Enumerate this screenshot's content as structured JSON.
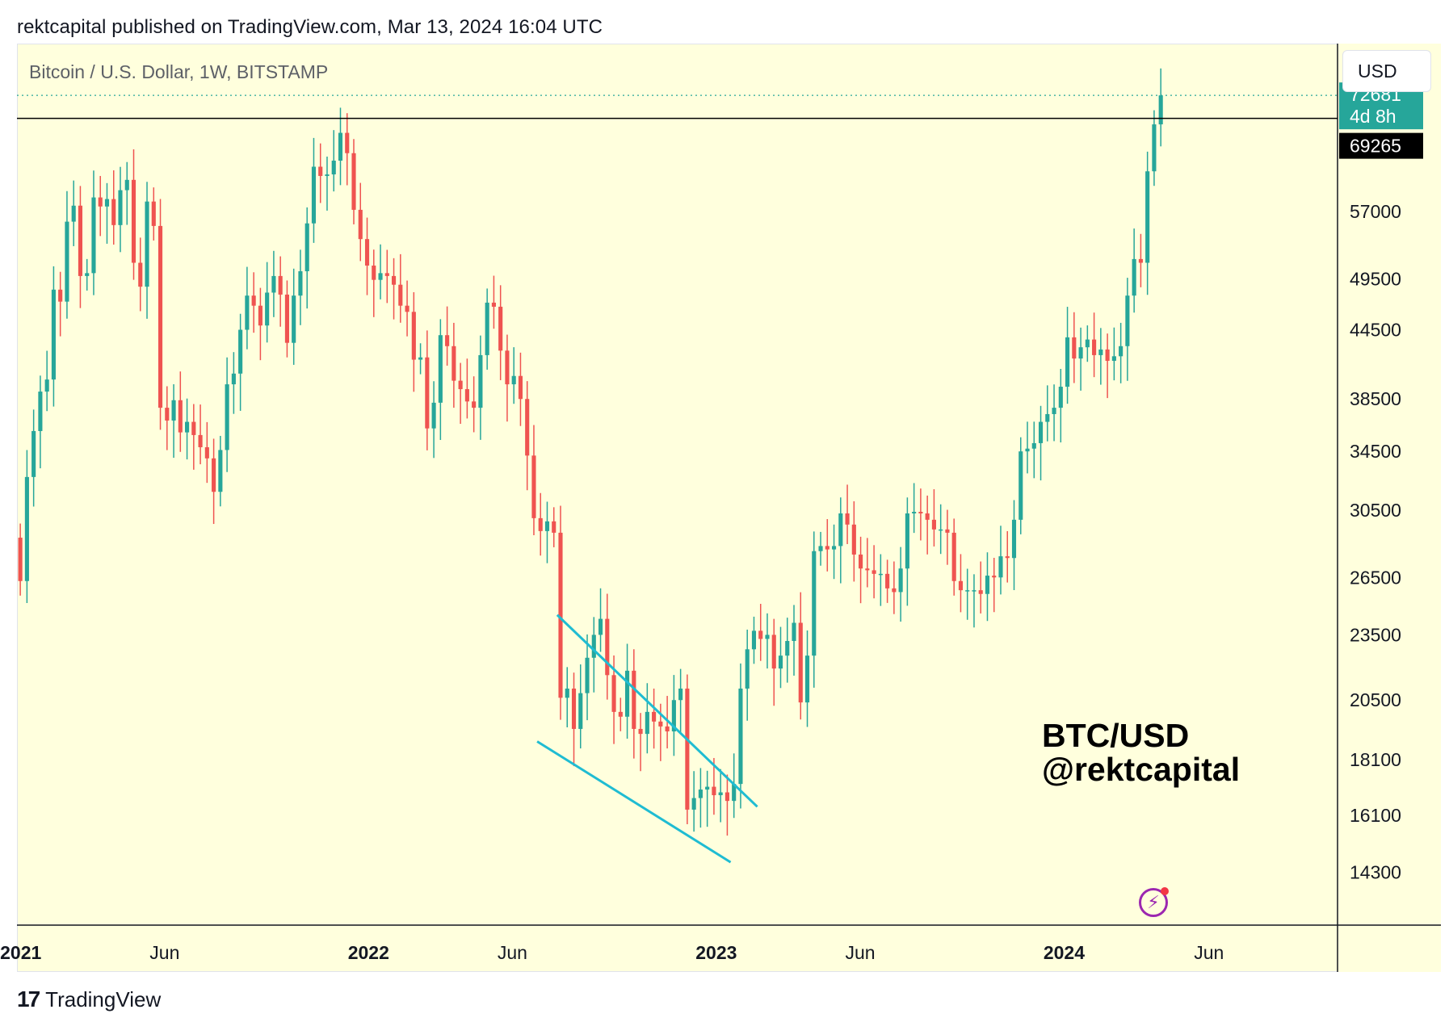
{
  "header": {
    "published": "rektcapital published on TradingView.com, Mar 13, 2024 16:04 UTC"
  },
  "symbol": {
    "title": "Bitcoin / U.S. Dollar, 1W, BITSTAMP"
  },
  "currency_button": {
    "label": "USD"
  },
  "watermark": {
    "line1": "BTC/USD",
    "line2": "@rektcapital"
  },
  "footer": {
    "logo_mark": "17",
    "logo_text": "TradingView"
  },
  "price_tags": {
    "last_price": "72681",
    "countdown": "4d 8h",
    "level": "69265",
    "last_price_color": "#26a69a",
    "level_color": "#000000"
  },
  "colors": {
    "up": "#26a69a",
    "down": "#ef5350",
    "trendline": "#1fbcd2",
    "background": "#ffffdd"
  },
  "chart_data": {
    "type": "candlestick",
    "title": "Bitcoin / U.S. Dollar, 1W, BITSTAMP",
    "y_scale": "log",
    "ylim": [
      12800,
      81000
    ],
    "y_ticks": [
      14300,
      16100,
      18100,
      20500,
      23500,
      26500,
      30500,
      34500,
      38500,
      44500,
      49500,
      57000
    ],
    "x_ticks": [
      {
        "label": "2021",
        "date": "2021-01-01",
        "bold": true
      },
      {
        "label": "Jun",
        "date": "2021-06-01",
        "bold": false
      },
      {
        "label": "2022",
        "date": "2022-01-01",
        "bold": true
      },
      {
        "label": "Jun",
        "date": "2022-06-01",
        "bold": false
      },
      {
        "label": "2023",
        "date": "2023-01-01",
        "bold": true
      },
      {
        "label": "Jun",
        "date": "2023-06-01",
        "bold": false
      },
      {
        "label": "2024",
        "date": "2024-01-01",
        "bold": true
      },
      {
        "label": "Jun",
        "date": "2024-06-01",
        "bold": false
      }
    ],
    "xlim": [
      "2020-12-28",
      "2024-10-14"
    ],
    "horizontal_level": 69265,
    "last_price": 72681,
    "first_week": "2020-12-28",
    "weekly_close": [
      26300,
      32700,
      36000,
      39100,
      40100,
      48400,
      47200,
      55800,
      57700,
      49800,
      50100,
      58700,
      57600,
      58500,
      55400,
      59600,
      60900,
      51200,
      48700,
      58200,
      55300,
      37800,
      36800,
      38400,
      35900,
      36700,
      35700,
      34800,
      34000,
      31700,
      34600,
      39700,
      40600,
      44500,
      47800,
      46800,
      44900,
      48100,
      49800,
      47900,
      43300,
      47800,
      50300,
      55600,
      62600,
      61400,
      61600,
      63400,
      67200,
      64400,
      57200,
      53800,
      50900,
      49400,
      50100,
      49800,
      48900,
      46800,
      46200,
      41800,
      42000,
      36200,
      38200,
      44000,
      43000,
      40000,
      39300,
      38300,
      37800,
      42200,
      47100,
      46700,
      42600,
      39700,
      40400,
      38500,
      34200,
      30000,
      29200,
      29800,
      29100,
      20600,
      21000,
      19300,
      20800,
      22400,
      23500,
      24300,
      21600,
      20000,
      19800,
      21800,
      19300,
      19100,
      20000,
      19600,
      19400,
      19200,
      20500,
      21000,
      16300,
      16700,
      17000,
      17100,
      16800,
      16900,
      16600,
      17200,
      21000,
      22800,
      23700,
      23300,
      23500,
      21900,
      22500,
      23200,
      24100,
      20400,
      22500,
      28000,
      28300,
      28100,
      28300,
      30300,
      29600,
      27800,
      27000,
      26900,
      26700,
      26700,
      25900,
      25700,
      27000,
      30300,
      30400,
      30300,
      29900,
      29300,
      29300,
      29100,
      26300,
      25800,
      25800,
      25800,
      25600,
      26600,
      26500,
      27700,
      27600,
      29900,
      34500,
      34700,
      35100,
      36700,
      37300,
      37800,
      39500,
      43800,
      41900,
      42900,
      43600,
      42200,
      42700,
      41700,
      42100,
      43000,
      47800,
      51600,
      51200,
      62000,
      68400,
      72681
    ],
    "candles_note_open_is_previous_close": true,
    "first_open": 28800,
    "trendlines": [
      {
        "from": {
          "date": "2022-07-18",
          "price": 24500
        },
        "to": {
          "date": "2023-02-13",
          "price": 16400
        }
      },
      {
        "from": {
          "date": "2022-06-27",
          "price": 18800
        },
        "to": {
          "date": "2023-01-16",
          "price": 14600
        }
      }
    ]
  }
}
